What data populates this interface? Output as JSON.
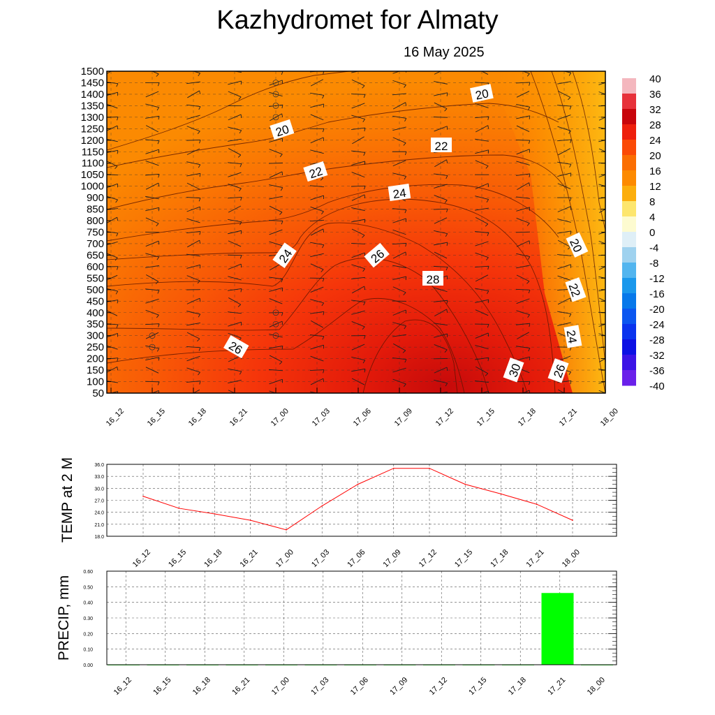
{
  "header": {
    "title": "Kazhydromet  for Almaty",
    "date": "16 May 2025"
  },
  "chart_data": [
    {
      "type": "heatmap",
      "y_ticks": [
        1500,
        1450,
        1400,
        1350,
        1300,
        1250,
        1200,
        1150,
        1100,
        1050,
        1000,
        900,
        850,
        800,
        750,
        700,
        650,
        600,
        550,
        500,
        450,
        400,
        350,
        300,
        250,
        200,
        150,
        100,
        50
      ],
      "x_ticks": [
        "16_12",
        "16_15",
        "16_18",
        "16_21",
        "17_00",
        "17_03",
        "17_06",
        "17_09",
        "17_12",
        "17_15",
        "17_18",
        "17_21",
        "18_00"
      ],
      "colorbar": {
        "labels": [
          "40",
          "36",
          "32",
          "28",
          "24",
          "20",
          "16",
          "12",
          "8",
          "4",
          "0",
          "-4",
          "-8",
          "-12",
          "-16",
          "-20",
          "-24",
          "-28",
          "-32",
          "-36",
          "-40"
        ],
        "colors": [
          "#f4b7be",
          "#e7313a",
          "#c8050b",
          "#ee1f0c",
          "#fb4a06",
          "#fb6e02",
          "#fd8a00",
          "#fcae0c",
          "#fde66e",
          "#fdfbd0",
          "#dfeff7",
          "#9fd2ef",
          "#52b5ef",
          "#1a98ec",
          "#0778ea",
          "#0b56f0",
          "#0a33ee",
          "#0c10e4",
          "#3b13e6",
          "#6a20ea"
        ]
      },
      "contour_labels": [
        "20",
        "20",
        "22",
        "22",
        "24",
        "24",
        "26",
        "26",
        "28",
        "30",
        "26",
        "20",
        "22",
        "24"
      ]
    },
    {
      "type": "line",
      "ylabel": "TEMP at 2 M",
      "x": [
        "16_12",
        "16_15",
        "16_18",
        "16_21",
        "17_00",
        "17_03",
        "17_06",
        "17_09",
        "17_12",
        "17_15",
        "17_18",
        "17_21",
        "18_00"
      ],
      "y_ticks": [
        "36.0",
        "33.0",
        "30.0",
        "27.0",
        "24.0",
        "21.0",
        "18.0"
      ],
      "ylim": [
        18,
        36
      ],
      "values": [
        28.0,
        25.0,
        23.6,
        22.0,
        19.6,
        25.6,
        31.0,
        35.0,
        35.0,
        31.0,
        28.6,
        26.0,
        22.0
      ],
      "line_color": "#ff0000"
    },
    {
      "type": "bar",
      "ylabel": "PRECIP, mm",
      "x": [
        "16_12",
        "16_15",
        "16_18",
        "16_21",
        "17_00",
        "17_03",
        "17_06",
        "17_09",
        "17_12",
        "17_15",
        "17_18",
        "17_21",
        "18_00"
      ],
      "y_ticks": [
        "0.60",
        "0.50",
        "0.40",
        "0.30",
        "0.20",
        "0.10",
        "0.00"
      ],
      "ylim": [
        0,
        0.6
      ],
      "values": [
        0,
        0,
        0,
        0,
        0,
        0,
        0,
        0,
        0,
        0,
        0,
        0.46,
        0
      ],
      "bar_color": "#00ff00"
    }
  ]
}
